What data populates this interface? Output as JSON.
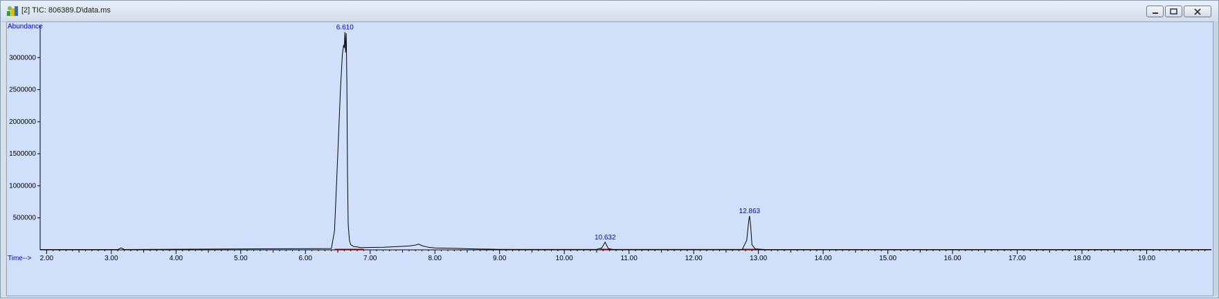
{
  "window": {
    "title": "[2] TIC: 806389.D\\data.ms",
    "icon": "chromatogram-app-icon",
    "buttons": [
      "minimize-icon",
      "restore-icon",
      "close-icon"
    ]
  },
  "chart_data": {
    "type": "line",
    "ylabel": "Abundance",
    "xlabel": "Time-->",
    "xlim": [
      1.9,
      20.0
    ],
    "ylim": [
      0,
      3500000
    ],
    "x_ticks": [
      2.0,
      3.0,
      4.0,
      5.0,
      6.0,
      7.0,
      8.0,
      9.0,
      10.0,
      11.0,
      12.0,
      13.0,
      14.0,
      15.0,
      16.0,
      17.0,
      18.0,
      19.0
    ],
    "x_tick_labels": [
      "2.00",
      "3.00",
      "4.00",
      "5.00",
      "6.00",
      "7.00",
      "8.00",
      "9.00",
      "10.00",
      "11.00",
      "12.00",
      "13.00",
      "14.00",
      "15.00",
      "16.00",
      "17.00",
      "18.00",
      "19.00"
    ],
    "y_ticks": [
      500000,
      1000000,
      1500000,
      2000000,
      2500000,
      3000000
    ],
    "y_tick_labels": [
      "500000",
      "1000000",
      "1500000",
      "2000000",
      "2500000",
      "3000000"
    ],
    "peak_labels": [
      {
        "x": 6.61,
        "y": 3400000,
        "label": "6.610"
      },
      {
        "x": 10.632,
        "y": 120000,
        "label": "10.632"
      },
      {
        "x": 12.863,
        "y": 530000,
        "label": "12.863"
      }
    ],
    "series": [
      {
        "x": [
          1.9,
          3.1,
          3.15,
          3.2,
          6.4,
          6.45,
          6.5,
          6.54,
          6.57,
          6.59,
          6.6,
          6.61,
          6.62,
          6.63,
          6.64,
          6.65,
          6.66,
          6.68,
          6.7,
          6.75,
          6.8,
          6.85,
          6.9,
          7.0,
          7.2,
          7.4,
          7.5,
          7.6,
          7.7,
          7.75,
          7.8,
          7.9,
          8.0,
          8.3,
          8.6,
          9.0,
          10.5,
          10.58,
          10.63,
          10.68,
          10.75,
          12.75,
          12.82,
          12.85,
          12.863,
          12.88,
          12.9,
          12.95,
          13.1,
          20.0
        ],
        "y": [
          5000,
          5000,
          30000,
          5000,
          20000,
          300000,
          1500000,
          2500000,
          3050000,
          3200000,
          3150000,
          3400000,
          3080000,
          3380000,
          2600000,
          1200000,
          400000,
          150000,
          80000,
          50000,
          45000,
          35000,
          35000,
          38000,
          40000,
          50000,
          55000,
          60000,
          75000,
          90000,
          65000,
          40000,
          30000,
          25000,
          15000,
          8000,
          6000,
          30000,
          120000,
          20000,
          6000,
          6000,
          150000,
          450000,
          530000,
          380000,
          80000,
          15000,
          5000,
          5000
        ]
      }
    ],
    "baselines": [
      [
        6.45,
        6.9
      ],
      [
        10.55,
        10.72
      ],
      [
        12.75,
        13.0
      ]
    ],
    "colors": {
      "trace": "#000000",
      "axis": "#000000",
      "label": "#0000cc",
      "baseline": "#cc0000",
      "background": "#d0e0fa"
    }
  }
}
